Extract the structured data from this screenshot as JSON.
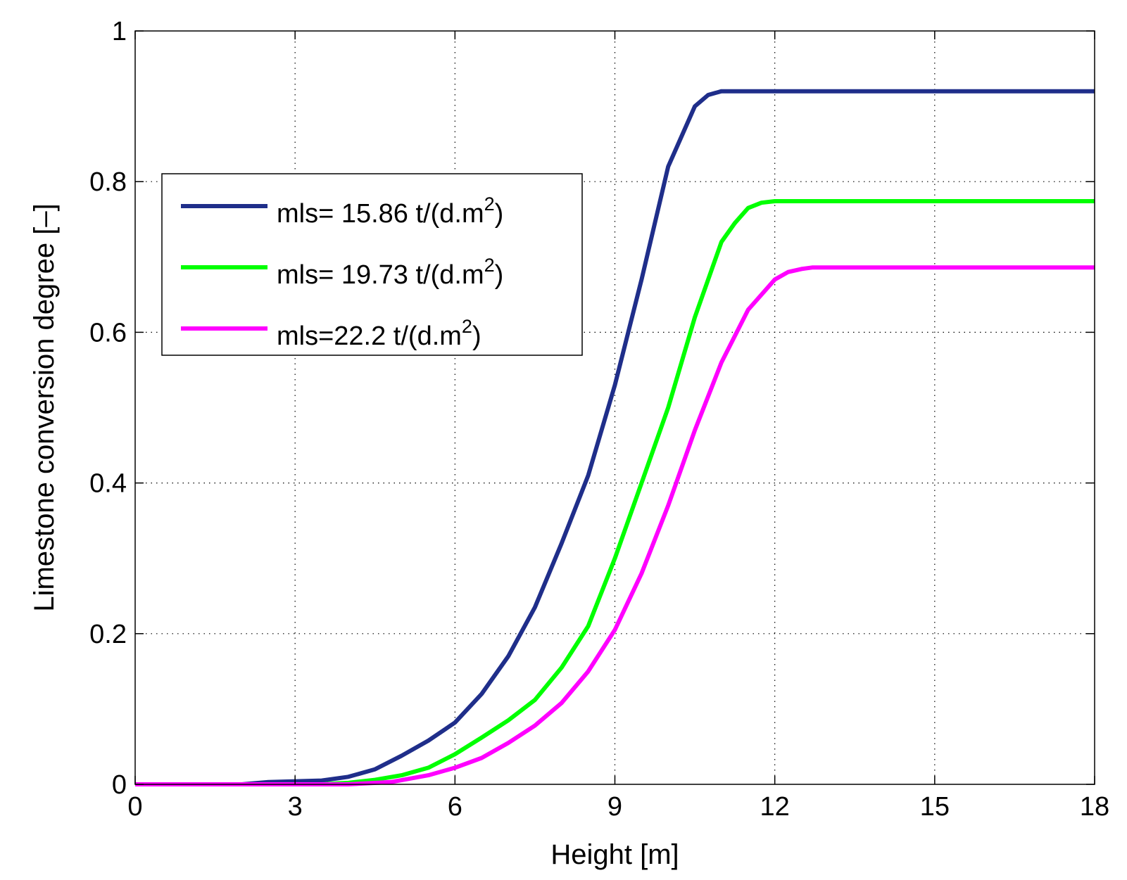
{
  "chart_data": {
    "type": "line",
    "title": "",
    "xlabel": "Height [m]",
    "ylabel": "Limestone conversion degree [–]",
    "xlim": [
      0,
      18
    ],
    "ylim": [
      0,
      1
    ],
    "xticks": [
      0,
      3,
      6,
      9,
      12,
      15,
      18
    ],
    "yticks": [
      0,
      0.2,
      0.4,
      0.6,
      0.8,
      1
    ],
    "xtick_labels": [
      "0",
      "3",
      "6",
      "9",
      "12",
      "15",
      "18"
    ],
    "ytick_labels": [
      "0",
      "0.2",
      "0.4",
      "0.6",
      "0.8",
      "1"
    ],
    "grid": true,
    "legend_position": "upper-left",
    "series": [
      {
        "name": "mls= 15.86 t/(d.m2)",
        "label_main": "mls= 15.86 t/(d.m",
        "label_sup": "2",
        "label_end": ")",
        "color": "#1f2e8a",
        "x": [
          0,
          2,
          2.5,
          3.5,
          4,
          4.5,
          5,
          5.5,
          6,
          6.5,
          7,
          7.5,
          8,
          8.5,
          9,
          9.5,
          10,
          10.25,
          10.5,
          10.75,
          11,
          12,
          15,
          18
        ],
        "y": [
          0,
          0,
          0.003,
          0.005,
          0.01,
          0.02,
          0.038,
          0.058,
          0.082,
          0.12,
          0.17,
          0.235,
          0.32,
          0.41,
          0.53,
          0.67,
          0.82,
          0.86,
          0.9,
          0.915,
          0.92,
          0.92,
          0.92,
          0.92
        ]
      },
      {
        "name": "mls= 19.73 t/(d.m2)",
        "label_main": "mls= 19.73 t/(d.m",
        "label_sup": "2",
        "label_end": ")",
        "color": "#00ff00",
        "x": [
          0,
          3.5,
          4,
          4.5,
          5,
          5.5,
          6,
          6.5,
          7,
          7.5,
          8,
          8.5,
          9,
          9.5,
          10,
          10.5,
          11,
          11.25,
          11.5,
          11.75,
          12,
          15,
          18
        ],
        "y": [
          0,
          0,
          0.002,
          0.006,
          0.012,
          0.022,
          0.04,
          0.062,
          0.085,
          0.112,
          0.155,
          0.21,
          0.3,
          0.4,
          0.5,
          0.62,
          0.72,
          0.745,
          0.765,
          0.772,
          0.774,
          0.774,
          0.774
        ]
      },
      {
        "name": "mls=22.2  t/(d.m2)",
        "label_main": "mls=22.2  t/(d.m",
        "label_sup": "2",
        "label_end": ")",
        "color": "#ff00ff",
        "x": [
          0,
          4,
          4.8,
          5.5,
          6,
          6.5,
          7,
          7.5,
          8,
          8.5,
          9,
          9.5,
          10,
          10.5,
          11,
          11.5,
          12,
          12.25,
          12.5,
          12.7,
          15,
          18
        ],
        "y": [
          0,
          0,
          0.003,
          0.012,
          0.022,
          0.035,
          0.055,
          0.078,
          0.108,
          0.15,
          0.205,
          0.28,
          0.37,
          0.47,
          0.56,
          0.63,
          0.67,
          0.68,
          0.684,
          0.686,
          0.686,
          0.686
        ]
      }
    ]
  }
}
